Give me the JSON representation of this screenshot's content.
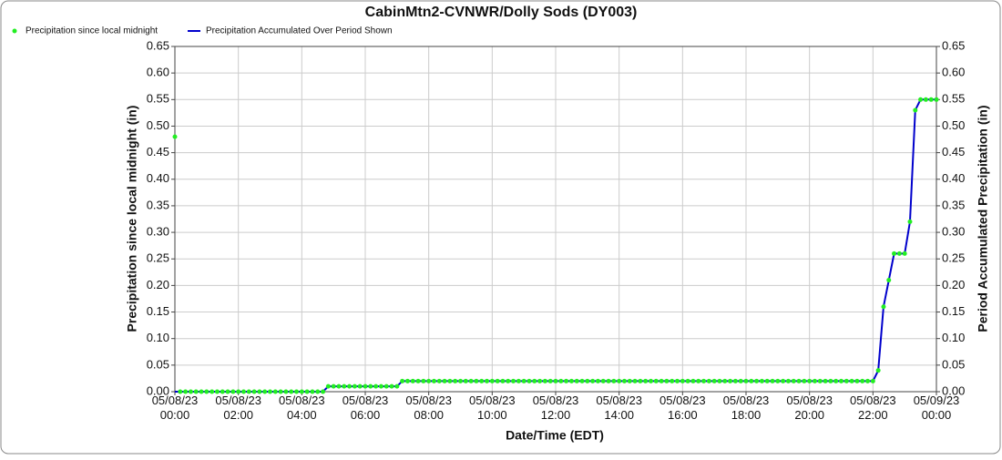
{
  "chart_data": {
    "type": "line",
    "title": "CabinMtn2-CVNWR/Dolly Sods (DY003)",
    "xlabel": "Date/Time (EDT)",
    "ylabel": "Precipitation since local midnight (in)",
    "y2label": "Period Accumulated Precipitation (in)",
    "grid": true,
    "legend": "top-left",
    "xlim": [
      0,
      1440
    ],
    "xticks": [
      {
        "value": 0,
        "label": "05/08/23 00:00"
      },
      {
        "value": 120,
        "label": "05/08/23 02:00"
      },
      {
        "value": 240,
        "label": "05/08/23 04:00"
      },
      {
        "value": 360,
        "label": "05/08/23 06:00"
      },
      {
        "value": 480,
        "label": "05/08/23 08:00"
      },
      {
        "value": 600,
        "label": "05/08/23 10:00"
      },
      {
        "value": 720,
        "label": "05/08/23 12:00"
      },
      {
        "value": 840,
        "label": "05/08/23 14:00"
      },
      {
        "value": 960,
        "label": "05/08/23 16:00"
      },
      {
        "value": 1080,
        "label": "05/08/23 18:00"
      },
      {
        "value": 1200,
        "label": "05/08/23 20:00"
      },
      {
        "value": 1320,
        "label": "05/08/23 22:00"
      },
      {
        "value": 1440,
        "label": "05/09/23 00:00"
      }
    ],
    "ylim": [
      0,
      0.65
    ],
    "yticks": [
      {
        "value": 0,
        "label": "0.00"
      },
      {
        "value": 0.05,
        "label": "0.05"
      },
      {
        "value": 0.1,
        "label": "0.10"
      },
      {
        "value": 0.15,
        "label": "0.15"
      },
      {
        "value": 0.2,
        "label": "0.20"
      },
      {
        "value": 0.25,
        "label": "0.25"
      },
      {
        "value": 0.3,
        "label": "0.30"
      },
      {
        "value": 0.35,
        "label": "0.35"
      },
      {
        "value": 0.4,
        "label": "0.40"
      },
      {
        "value": 0.45,
        "label": "0.45"
      },
      {
        "value": 0.5,
        "label": "0.50"
      },
      {
        "value": 0.55,
        "label": "0.55"
      },
      {
        "value": 0.6,
        "label": "0.60"
      },
      {
        "value": 0.65,
        "label": "0.65"
      }
    ],
    "y2lim": [
      0,
      0.65
    ],
    "y2ticks": [
      {
        "value": 0,
        "label": "0.00"
      },
      {
        "value": 0.05,
        "label": "0.05"
      },
      {
        "value": 0.1,
        "label": "0.10"
      },
      {
        "value": 0.15,
        "label": "0.15"
      },
      {
        "value": 0.2,
        "label": "0.20"
      },
      {
        "value": 0.25,
        "label": "0.25"
      },
      {
        "value": 0.3,
        "label": "0.30"
      },
      {
        "value": 0.35,
        "label": "0.35"
      },
      {
        "value": 0.4,
        "label": "0.40"
      },
      {
        "value": 0.45,
        "label": "0.45"
      },
      {
        "value": 0.5,
        "label": "0.50"
      },
      {
        "value": 0.55,
        "label": "0.55"
      },
      {
        "value": 0.6,
        "label": "0.60"
      },
      {
        "value": 0.65,
        "label": "0.65"
      }
    ],
    "series": [
      {
        "name": "Precipitation since local midnight",
        "color": "#22ee22",
        "kind": "points",
        "x": [
          0,
          10,
          20,
          30,
          40,
          50,
          60,
          70,
          80,
          90,
          100,
          110,
          120,
          130,
          140,
          150,
          160,
          170,
          180,
          190,
          200,
          210,
          220,
          230,
          240,
          250,
          260,
          270,
          280,
          290,
          300,
          310,
          320,
          330,
          340,
          350,
          360,
          370,
          380,
          390,
          400,
          410,
          420,
          430,
          440,
          450,
          460,
          470,
          480,
          490,
          500,
          510,
          520,
          530,
          540,
          550,
          560,
          570,
          580,
          590,
          600,
          610,
          620,
          630,
          640,
          650,
          660,
          670,
          680,
          690,
          700,
          710,
          720,
          730,
          740,
          750,
          760,
          770,
          780,
          790,
          800,
          810,
          820,
          830,
          840,
          850,
          860,
          870,
          880,
          890,
          900,
          910,
          920,
          930,
          940,
          950,
          960,
          970,
          980,
          990,
          1000,
          1010,
          1020,
          1030,
          1040,
          1050,
          1060,
          1070,
          1080,
          1090,
          1100,
          1110,
          1120,
          1130,
          1140,
          1150,
          1160,
          1170,
          1180,
          1190,
          1200,
          1210,
          1220,
          1230,
          1240,
          1250,
          1260,
          1270,
          1280,
          1290,
          1300,
          1310,
          1320,
          1330,
          1340,
          1350,
          1360,
          1370,
          1380,
          1390,
          1400,
          1410,
          1420,
          1430,
          1440
        ],
        "values": [
          0.48,
          0,
          0,
          0,
          0,
          0,
          0,
          0,
          0,
          0,
          0,
          0,
          0,
          0,
          0,
          0,
          0,
          0,
          0,
          0,
          0,
          0,
          0,
          0,
          0,
          0,
          0,
          0,
          0,
          0.01,
          0.01,
          0.01,
          0.01,
          0.01,
          0.01,
          0.01,
          0.01,
          0.01,
          0.01,
          0.01,
          0.01,
          0.01,
          0.01,
          0.02,
          0.02,
          0.02,
          0.02,
          0.02,
          0.02,
          0.02,
          0.02,
          0.02,
          0.02,
          0.02,
          0.02,
          0.02,
          0.02,
          0.02,
          0.02,
          0.02,
          0.02,
          0.02,
          0.02,
          0.02,
          0.02,
          0.02,
          0.02,
          0.02,
          0.02,
          0.02,
          0.02,
          0.02,
          0.02,
          0.02,
          0.02,
          0.02,
          0.02,
          0.02,
          0.02,
          0.02,
          0.02,
          0.02,
          0.02,
          0.02,
          0.02,
          0.02,
          0.02,
          0.02,
          0.02,
          0.02,
          0.02,
          0.02,
          0.02,
          0.02,
          0.02,
          0.02,
          0.02,
          0.02,
          0.02,
          0.02,
          0.02,
          0.02,
          0.02,
          0.02,
          0.02,
          0.02,
          0.02,
          0.02,
          0.02,
          0.02,
          0.02,
          0.02,
          0.02,
          0.02,
          0.02,
          0.02,
          0.02,
          0.02,
          0.02,
          0.02,
          0.02,
          0.02,
          0.02,
          0.02,
          0.02,
          0.02,
          0.02,
          0.02,
          0.02,
          0.02,
          0.02,
          0.02,
          0.02,
          0.04,
          0.16,
          0.21,
          0.26,
          0.26,
          0.26,
          0.32,
          0.53,
          0.55,
          0.55,
          0.55,
          0.55
        ]
      },
      {
        "name": "Precipitation Accumulated Over Period Shown",
        "color": "#0000cc",
        "kind": "line",
        "axis": "y2",
        "x": [
          0,
          280,
          290,
          420,
          430,
          1320,
          1330,
          1340,
          1350,
          1360,
          1370,
          1380,
          1390,
          1400,
          1410,
          1420,
          1440
        ],
        "values": [
          0,
          0,
          0.01,
          0.01,
          0.02,
          0.02,
          0.04,
          0.16,
          0.21,
          0.26,
          0.26,
          0.26,
          0.32,
          0.53,
          0.55,
          0.55,
          0.55
        ]
      }
    ]
  }
}
